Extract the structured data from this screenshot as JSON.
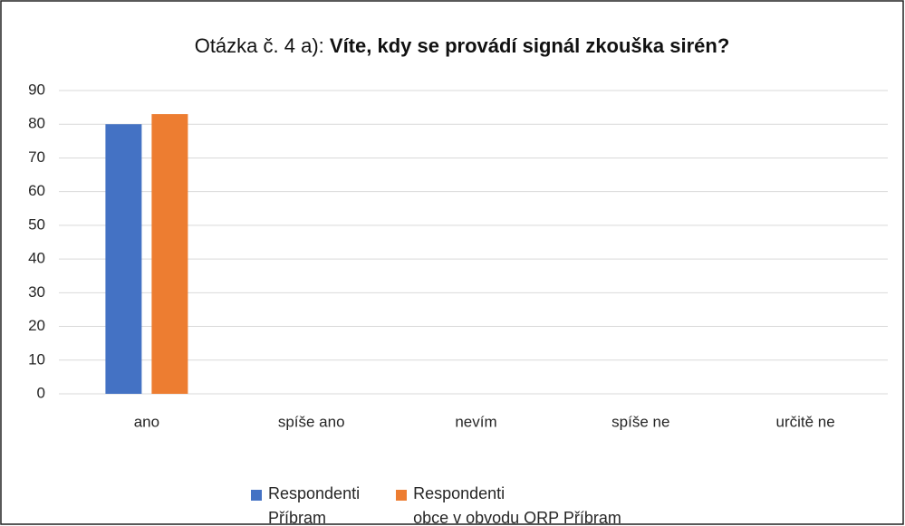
{
  "chart_data": {
    "type": "bar",
    "title": {
      "lead": "Otázka č. 4 a):",
      "question": "Víte, kdy se provádí signál zkouška sirén?"
    },
    "categories": [
      "ano",
      "spíše ano",
      "nevím",
      "spíše ne",
      "určitě ne"
    ],
    "series": [
      {
        "name": "Respondenti\nPříbram",
        "color": "#4472c4",
        "values": [
          80,
          0,
          0,
          0,
          0
        ]
      },
      {
        "name": "Respondenti\nobce v obvodu ORP Příbram",
        "color": "#ed7d31",
        "values": [
          83,
          0,
          0,
          0,
          0
        ]
      }
    ],
    "ylim": [
      0,
      90
    ],
    "yticks": [
      0,
      10,
      20,
      30,
      40,
      50,
      60,
      70,
      80,
      90
    ],
    "grid": true,
    "legend": "bottom"
  }
}
